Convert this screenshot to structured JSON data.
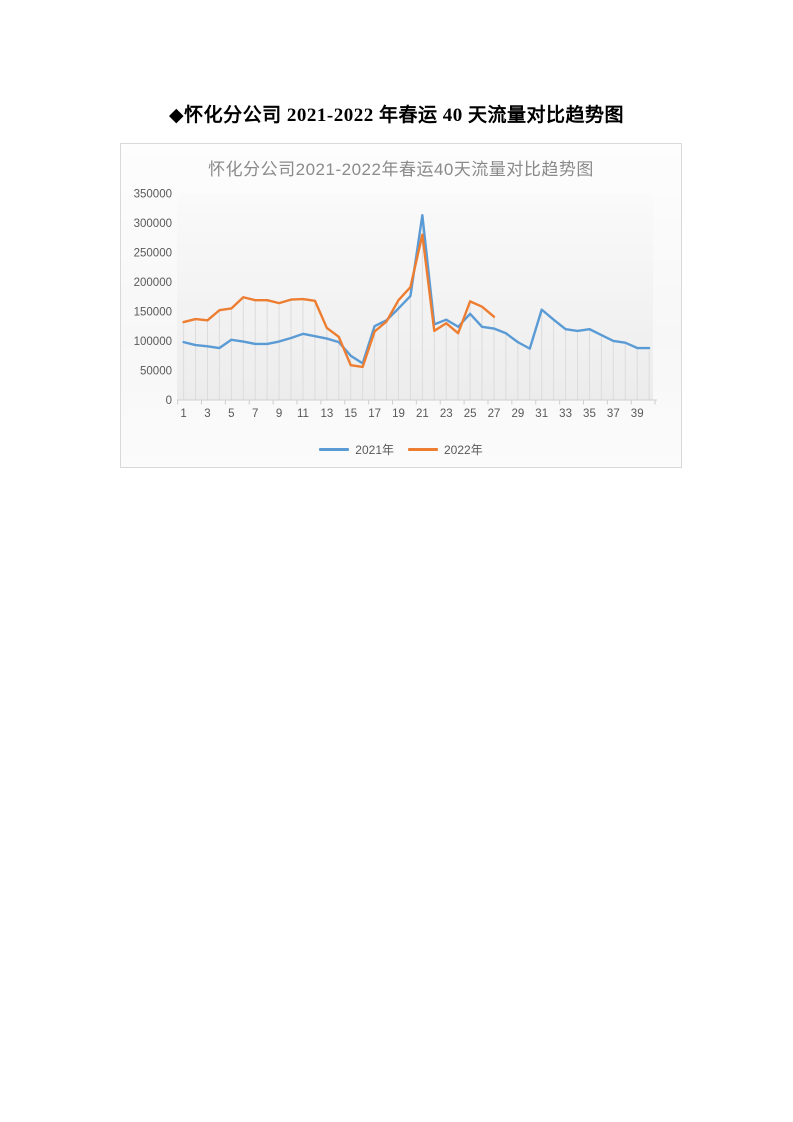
{
  "page": {
    "title": "◆怀化分公司 2021-2022 年春运 40 天流量对比趋势图"
  },
  "chart_data": {
    "type": "line",
    "title": "怀化分公司2021-2022年春运40天流量对比趋势图",
    "xlabel": "",
    "ylabel": "",
    "ylim": [
      0,
      350000
    ],
    "y_ticks": [
      0,
      50000,
      100000,
      150000,
      200000,
      250000,
      300000,
      350000
    ],
    "x_categories_days": [
      1,
      2,
      3,
      4,
      5,
      6,
      7,
      8,
      9,
      10,
      11,
      12,
      13,
      14,
      15,
      16,
      17,
      18,
      19,
      20,
      21,
      22,
      23,
      24,
      25,
      26,
      27,
      28,
      29,
      30,
      31,
      32,
      33,
      34,
      35,
      36,
      37,
      38,
      39,
      40
    ],
    "x_tick_labels_shown": [
      "1",
      "3",
      "5",
      "7",
      "9",
      "11",
      "13",
      "15",
      "17",
      "19",
      "21",
      "23",
      "25",
      "27",
      "29",
      "31",
      "33",
      "35",
      "37",
      "39"
    ],
    "grid": "vertical-drop-lines",
    "legend_position": "bottom",
    "series": [
      {
        "name": "2021年",
        "color": "#5B9BD5",
        "values": [
          98000,
          93000,
          91000,
          88000,
          102000,
          99000,
          95000,
          95000,
          99000,
          105000,
          112000,
          108000,
          104000,
          98000,
          75000,
          62000,
          125000,
          135000,
          155000,
          176000,
          313000,
          128000,
          136000,
          124000,
          146000,
          124000,
          121000,
          113000,
          98000,
          87000,
          153000,
          136000,
          120000,
          117000,
          120000,
          110000,
          100000,
          97000,
          88000,
          88000
        ]
      },
      {
        "name": "2022年",
        "color": "#ED7D31",
        "values": [
          132000,
          137000,
          135000,
          152000,
          155000,
          174000,
          169000,
          169000,
          164000,
          170000,
          171000,
          168000,
          122000,
          107000,
          59000,
          56000,
          116000,
          133000,
          169000,
          191000,
          280000,
          117000,
          130000,
          113000,
          167000,
          158000,
          141000
        ]
      }
    ],
    "style": {
      "axis_text_color": "#595959",
      "chart_title_color": "#8a8a8a",
      "drop_line_color": "#dcdcdc",
      "axis_line_color": "#cfcfcf",
      "plot_bg_top": "#fafafa",
      "plot_bg_bottom": "#ececec",
      "chart_border_color": "#d9d9d9"
    }
  }
}
